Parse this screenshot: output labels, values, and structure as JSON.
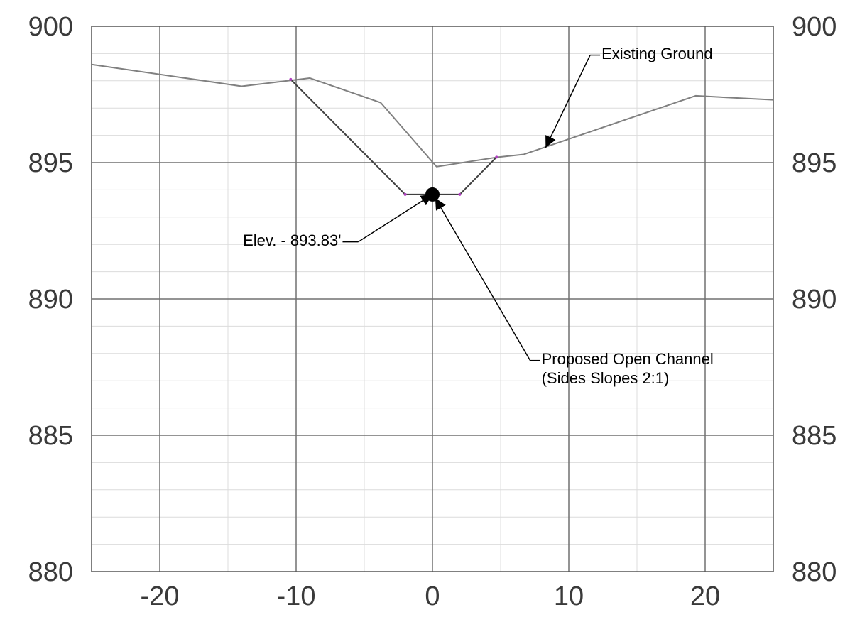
{
  "chart_data": {
    "type": "line",
    "title": "",
    "xlabel": "",
    "ylabel": "",
    "xlim": [
      -25,
      25
    ],
    "ylim": [
      880,
      900
    ],
    "x_major_ticks": [
      -20,
      -10,
      0,
      10,
      20
    ],
    "x_tick_labels": [
      "-20",
      "-10",
      "0",
      "10",
      "20"
    ],
    "x_minor_ticks": [
      -15,
      -5,
      5,
      15
    ],
    "y_major_ticks": [
      880,
      885,
      890,
      895,
      900
    ],
    "y_tick_labels": [
      "880",
      "885",
      "890",
      "895",
      "900"
    ],
    "y_minor_step": 1,
    "grid": true,
    "y_labels_on_both_sides": true,
    "series": [
      {
        "key": "existing-ground",
        "color": "#808080",
        "points": [
          [
            -25,
            898.6
          ],
          [
            -14,
            897.8
          ],
          [
            -9,
            898.1
          ],
          [
            -3.8,
            897.2
          ],
          [
            0.3,
            894.85
          ],
          [
            4.8,
            895.2
          ],
          [
            6.7,
            895.3
          ],
          [
            19.3,
            897.45
          ],
          [
            25,
            897.3
          ]
        ]
      },
      {
        "key": "proposed-channel",
        "color": "#404040",
        "points": [
          [
            -10.4,
            898.05
          ],
          [
            -2,
            893.83
          ],
          [
            2,
            893.83
          ],
          [
            4.7,
            895.2
          ]
        ],
        "vertex_color": "#b040c0"
      }
    ],
    "marker": {
      "x": 0,
      "y": 893.83,
      "color": "#000000"
    },
    "annotations": [
      {
        "key": "existing-ground-label",
        "lines": [
          "Existing Ground"
        ],
        "text_at": [
          12.4,
          898.8
        ],
        "target": [
          8.3,
          895.55
        ]
      },
      {
        "key": "elevation-label",
        "lines": [
          "Elev. - 893.83'"
        ],
        "text_at": [
          -13.9,
          891.95
        ],
        "target": [
          0,
          893.83
        ]
      },
      {
        "key": "proposed-channel-label",
        "lines": [
          "Proposed Open Channel",
          "(Sides Slopes 2:1)"
        ],
        "text_at": [
          8,
          887.6
        ],
        "target": [
          0.2,
          893.7
        ]
      }
    ]
  }
}
